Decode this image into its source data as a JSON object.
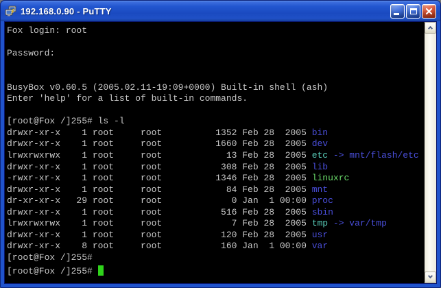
{
  "window": {
    "title": "192.168.0.90 - PuTTY"
  },
  "terminal": {
    "banner_lines": [
      "Fox login: root",
      "",
      "Password:",
      "",
      "",
      "BusyBox v0.60.5 (2005.02.11-19:09+0000) Built-in shell (ash)",
      "Enter 'help' for a list of built-in commands.",
      ""
    ],
    "prompt": "[root@Fox /]255#",
    "command": "ls -l",
    "listing": [
      {
        "perms": "drwxr-xr-x",
        "links": "1",
        "owner": "root",
        "group": "root",
        "size": "1352",
        "month": "Feb",
        "day": "28",
        "time": "2005",
        "name": "bin",
        "type": "dir"
      },
      {
        "perms": "drwxr-xr-x",
        "links": "1",
        "owner": "root",
        "group": "root",
        "size": "1660",
        "month": "Feb",
        "day": "28",
        "time": "2005",
        "name": "dev",
        "type": "dir"
      },
      {
        "perms": "lrwxrwxrwx",
        "links": "1",
        "owner": "root",
        "group": "root",
        "size": "13",
        "month": "Feb",
        "day": "28",
        "time": "2005",
        "name": "etc",
        "type": "symlink",
        "target": "mnt/flash/etc"
      },
      {
        "perms": "drwxr-xr-x",
        "links": "1",
        "owner": "root",
        "group": "root",
        "size": "308",
        "month": "Feb",
        "day": "28",
        "time": "2005",
        "name": "lib",
        "type": "dir"
      },
      {
        "perms": "-rwxr-xr-x",
        "links": "1",
        "owner": "root",
        "group": "root",
        "size": "1346",
        "month": "Feb",
        "day": "28",
        "time": "2005",
        "name": "linuxrc",
        "type": "exec"
      },
      {
        "perms": "drwxr-xr-x",
        "links": "1",
        "owner": "root",
        "group": "root",
        "size": "84",
        "month": "Feb",
        "day": "28",
        "time": "2005",
        "name": "mnt",
        "type": "dir"
      },
      {
        "perms": "dr-xr-xr-x",
        "links": "29",
        "owner": "root",
        "group": "root",
        "size": "0",
        "month": "Jan",
        "day": "1",
        "time": "00:00",
        "name": "proc",
        "type": "dir"
      },
      {
        "perms": "drwxr-xr-x",
        "links": "1",
        "owner": "root",
        "group": "root",
        "size": "516",
        "month": "Feb",
        "day": "28",
        "time": "2005",
        "name": "sbin",
        "type": "dir"
      },
      {
        "perms": "lrwxrwxrwx",
        "links": "1",
        "owner": "root",
        "group": "root",
        "size": "7",
        "month": "Feb",
        "day": "28",
        "time": "2005",
        "name": "tmp",
        "type": "symlink",
        "target": "var/tmp"
      },
      {
        "perms": "drwxr-xr-x",
        "links": "1",
        "owner": "root",
        "group": "root",
        "size": "120",
        "month": "Feb",
        "day": "28",
        "time": "2005",
        "name": "usr",
        "type": "dir"
      },
      {
        "perms": "drwxr-xr-x",
        "links": "8",
        "owner": "root",
        "group": "root",
        "size": "160",
        "month": "Jan",
        "day": "1",
        "time": "00:00",
        "name": "var",
        "type": "dir"
      }
    ],
    "arrow": "->",
    "post_prompts": [
      "[root@Fox /]255#",
      "[root@Fox /]255#"
    ],
    "cursor_visible": true
  },
  "colors": {
    "fg": "#C9C9C9",
    "dir": "#4A4FDC",
    "symlink": "#58CBB8",
    "executable": "#6ADB6A",
    "cursor": "#2FD31B",
    "background": "#000000"
  }
}
